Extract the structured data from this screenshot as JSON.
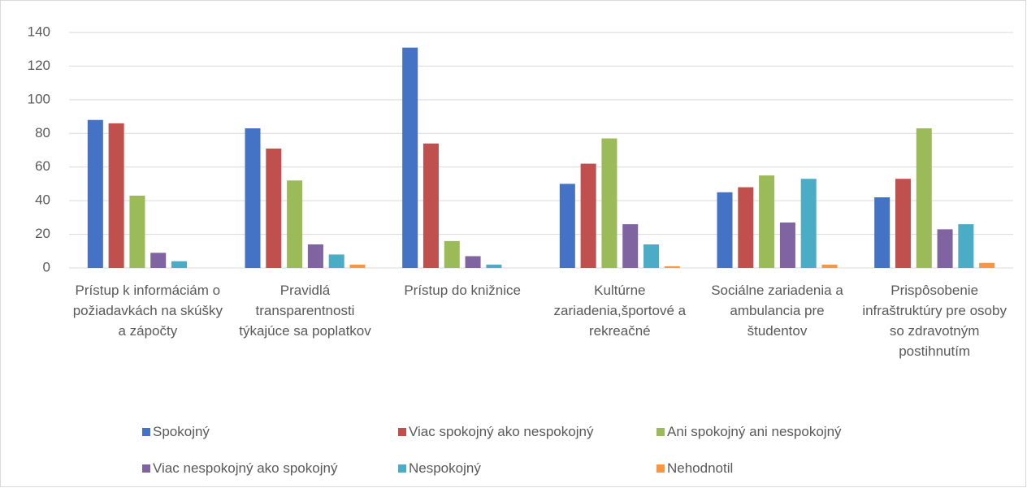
{
  "chart_data": {
    "type": "bar",
    "categories": [
      "Prístup k informáciám o požiadavkách na skúšky a zápočty",
      "Pravidlá transparentnosti týkajúce sa poplatkov",
      "Prístup do knižnice",
      "Kultúrne zariadenia,športové a rekreačné",
      "Sociálne zariadenia a ambulancia pre študentov",
      "Prispôsobenie infraštruktúry pre osoby so zdravotným postihnutím"
    ],
    "series": [
      {
        "name": "Spokojný",
        "color": "#4472c4",
        "values": [
          88,
          83,
          131,
          50,
          45,
          42
        ]
      },
      {
        "name": "Viac spokojný ako nespokojný",
        "color": "#c0504d",
        "values": [
          86,
          71,
          74,
          62,
          48,
          53
        ]
      },
      {
        "name": "Ani spokojný ani nespokojný",
        "color": "#9bbb59",
        "values": [
          43,
          52,
          16,
          77,
          55,
          83
        ]
      },
      {
        "name": "Viac nespokojný ako spokojný",
        "color": "#8064a2",
        "values": [
          9,
          14,
          7,
          26,
          27,
          23
        ]
      },
      {
        "name": "Nespokojný",
        "color": "#4bacc6",
        "values": [
          4,
          8,
          2,
          14,
          53,
          26
        ]
      },
      {
        "name": "Nehodnotil",
        "color": "#f79646",
        "values": [
          0,
          2,
          0,
          1,
          2,
          3
        ]
      }
    ],
    "ylim": [
      0,
      140
    ],
    "yticks": [
      0,
      20,
      40,
      60,
      80,
      100,
      120,
      140
    ],
    "grid": true,
    "legend": "bottom"
  }
}
